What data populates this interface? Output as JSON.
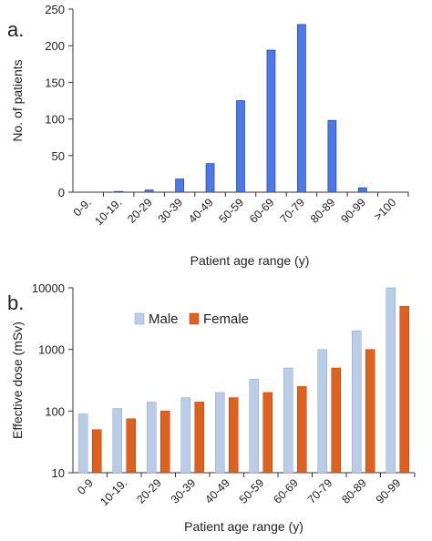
{
  "chart_data": [
    {
      "type": "bar",
      "panel_label": "a.",
      "xlabel": "Patient age range (y)",
      "ylabel": "No. of patients",
      "ylim": [
        0,
        250
      ],
      "yticks": [
        0,
        50,
        100,
        150,
        200,
        250
      ],
      "categories": [
        "0-9.",
        "10-19.",
        "20-29",
        "30-39",
        "40-49",
        "50-59",
        "60-69",
        "70-79",
        "80-89",
        "90-99",
        ">100"
      ],
      "values": [
        0,
        1,
        3,
        18,
        39,
        125,
        194,
        229,
        98,
        6,
        0
      ],
      "colors": {
        "bar": "#4d79e8",
        "bar_stroke": "#1c3f9a"
      },
      "grid": false
    },
    {
      "type": "bar",
      "panel_label": "b.",
      "xlabel": "Patient age range (y)",
      "ylabel": "Effective dose (mSv)",
      "yscale": "log",
      "ylim": [
        10,
        10000
      ],
      "yticks": [
        10,
        100,
        1000,
        10000
      ],
      "legend_position": "top-left",
      "categories": [
        "0-9",
        "10-19.",
        "20-29",
        "30-39",
        "40-49",
        "50-59",
        "60-69",
        "70-79",
        "80-89",
        "90-99"
      ],
      "series": [
        {
          "name": "Male",
          "color": "#b9cde8",
          "values": [
            90,
            110,
            140,
            165,
            200,
            330,
            500,
            1000,
            2000,
            10000
          ]
        },
        {
          "name": "Female",
          "color": "#e0601e",
          "values": [
            50,
            75,
            100,
            140,
            165,
            200,
            250,
            500,
            1000,
            5000
          ]
        }
      ],
      "grid": false
    }
  ]
}
